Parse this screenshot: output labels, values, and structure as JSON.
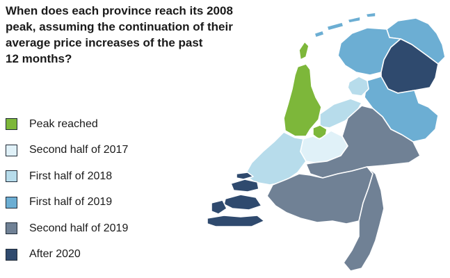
{
  "title_lines": [
    "When does each province reach its 2008",
    "peak, assuming the continuation of their",
    "average price increases of the past",
    "12 months?"
  ],
  "legend": [
    {
      "label": "Peak reached",
      "color": "#7db73a"
    },
    {
      "label": "Second half of 2017",
      "color": "#e0f1f8"
    },
    {
      "label": "First half of 2018",
      "color": "#b7dceb"
    },
    {
      "label": "First half of 2019",
      "color": "#6caed3"
    },
    {
      "label": "Second half of 2019",
      "color": "#708195"
    },
    {
      "label": "After 2020",
      "color": "#2f4a6e"
    }
  ],
  "regions": {
    "groningen": "First half of 2019",
    "friesland": "First half of 2019",
    "drenthe": "After 2020",
    "overijssel": "First half of 2019",
    "flevoland": "First half of 2018",
    "noord_holland": "Peak reached",
    "zuid_holland": "First half of 2018",
    "utrecht": "Second half of 2017",
    "gelderland": "Second half of 2019",
    "zeeland": "After 2020",
    "noord_brabant": "Second half of 2019",
    "limburg": "Second half of 2019"
  }
}
